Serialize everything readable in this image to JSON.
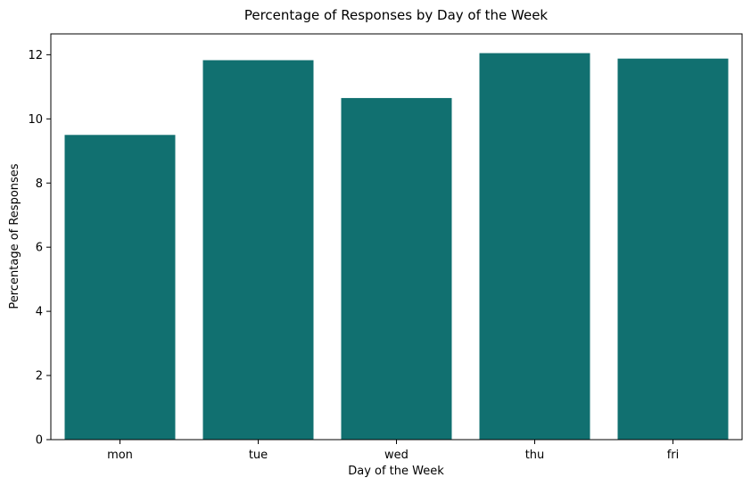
{
  "chart_data": {
    "type": "bar",
    "title": "Percentage of Responses by Day of the Week",
    "xlabel": "Day of the Week",
    "ylabel": "Percentage of Responses",
    "categories": [
      "mon",
      "tue",
      "wed",
      "thu",
      "fri"
    ],
    "values": [
      9.5,
      11.83,
      10.65,
      12.05,
      11.88
    ],
    "ylim": [
      0,
      12.65
    ],
    "yticks": [
      0,
      2,
      4,
      6,
      8,
      10,
      12
    ],
    "grid": false,
    "bar_color": "#117070"
  }
}
